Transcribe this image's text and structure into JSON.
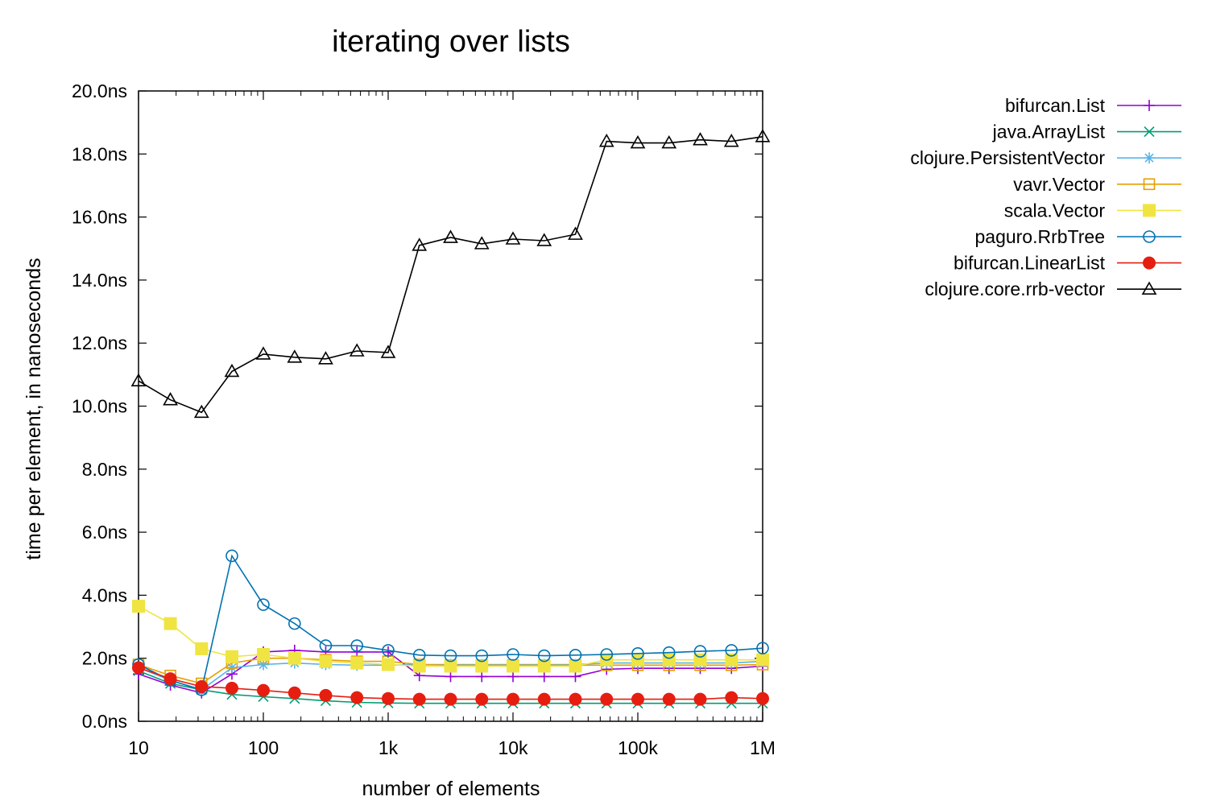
{
  "chart_data": {
    "type": "line",
    "title": "iterating over lists",
    "xlabel": "number of elements",
    "ylabel": "time per element, in nanoseconds",
    "xscale": "log",
    "xlim": [
      10,
      1000000
    ],
    "ylim": [
      0,
      20
    ],
    "grid": false,
    "legend_position": "outside-right",
    "x_ticks": [
      {
        "value": 10,
        "label": "10"
      },
      {
        "value": 100,
        "label": "100"
      },
      {
        "value": 1000,
        "label": "1k"
      },
      {
        "value": 10000,
        "label": "10k"
      },
      {
        "value": 100000,
        "label": "100k"
      },
      {
        "value": 1000000,
        "label": "1M"
      }
    ],
    "y_ticks": [
      {
        "value": 0,
        "label": "0.0ns"
      },
      {
        "value": 2,
        "label": "2.0ns"
      },
      {
        "value": 4,
        "label": "4.0ns"
      },
      {
        "value": 6,
        "label": "6.0ns"
      },
      {
        "value": 8,
        "label": "8.0ns"
      },
      {
        "value": 10,
        "label": "10.0ns"
      },
      {
        "value": 12,
        "label": "12.0ns"
      },
      {
        "value": 14,
        "label": "14.0ns"
      },
      {
        "value": 16,
        "label": "16.0ns"
      },
      {
        "value": 18,
        "label": "18.0ns"
      },
      {
        "value": 20,
        "label": "20.0ns"
      }
    ],
    "x": [
      10,
      18,
      32,
      56,
      100,
      178,
      316,
      562,
      1000,
      1778,
      3162,
      5623,
      10000,
      17783,
      31623,
      56234,
      100000,
      177828,
      316228,
      562341,
      1000000
    ],
    "series": [
      {
        "name": "bifurcan.List",
        "color": "#9400d3",
        "marker": "plus",
        "values": [
          1.5,
          1.15,
          0.9,
          1.5,
          2.2,
          2.25,
          2.2,
          2.2,
          2.2,
          1.45,
          1.42,
          1.42,
          1.42,
          1.42,
          1.42,
          1.65,
          1.68,
          1.68,
          1.68,
          1.68,
          1.75
        ]
      },
      {
        "name": "java.ArrayList",
        "color": "#009e73",
        "marker": "x",
        "values": [
          1.6,
          1.2,
          1.0,
          0.85,
          0.78,
          0.72,
          0.65,
          0.6,
          0.58,
          0.57,
          0.57,
          0.57,
          0.57,
          0.57,
          0.57,
          0.57,
          0.57,
          0.57,
          0.57,
          0.57,
          0.57
        ]
      },
      {
        "name": "clojure.PersistentVector",
        "color": "#56b4e9",
        "marker": "asterisk",
        "values": [
          1.7,
          1.3,
          1.0,
          1.7,
          1.8,
          1.85,
          1.8,
          1.78,
          1.78,
          1.8,
          1.8,
          1.8,
          1.8,
          1.8,
          1.8,
          1.85,
          1.85,
          1.85,
          1.85,
          1.85,
          1.9
        ]
      },
      {
        "name": "vavr.Vector",
        "color": "#e69f00",
        "marker": "square-open",
        "values": [
          1.8,
          1.45,
          1.2,
          1.85,
          2.0,
          2.0,
          1.95,
          1.9,
          1.9,
          1.8,
          1.78,
          1.78,
          1.78,
          1.78,
          1.78,
          1.78,
          1.78,
          1.78,
          1.78,
          1.78,
          1.8
        ]
      },
      {
        "name": "scala.Vector",
        "color": "#f0e442",
        "marker": "square-filled",
        "values": [
          3.65,
          3.1,
          2.3,
          2.05,
          2.12,
          2.0,
          1.9,
          1.85,
          1.8,
          1.75,
          1.75,
          1.75,
          1.75,
          1.75,
          1.75,
          1.95,
          1.95,
          1.95,
          1.95,
          1.95,
          1.95
        ]
      },
      {
        "name": "paguro.RrbTree",
        "color": "#0072b2",
        "marker": "circle-open",
        "values": [
          1.8,
          1.3,
          1.0,
          5.25,
          3.7,
          3.1,
          2.4,
          2.4,
          2.25,
          2.1,
          2.08,
          2.08,
          2.12,
          2.08,
          2.1,
          2.12,
          2.15,
          2.18,
          2.22,
          2.25,
          2.32
        ]
      },
      {
        "name": "bifurcan.LinearList",
        "color": "#e51e10",
        "marker": "circle-filled",
        "values": [
          1.7,
          1.35,
          1.1,
          1.05,
          0.98,
          0.9,
          0.82,
          0.75,
          0.72,
          0.7,
          0.7,
          0.7,
          0.7,
          0.7,
          0.7,
          0.7,
          0.7,
          0.7,
          0.7,
          0.75,
          0.72
        ]
      },
      {
        "name": "clojure.core.rrb-vector",
        "color": "#000000",
        "marker": "triangle-open",
        "values": [
          10.8,
          10.2,
          9.8,
          11.1,
          11.65,
          11.55,
          11.5,
          11.75,
          11.7,
          15.1,
          15.35,
          15.15,
          15.3,
          15.25,
          15.45,
          18.4,
          18.35,
          18.35,
          18.45,
          18.4,
          18.55
        ]
      }
    ]
  }
}
